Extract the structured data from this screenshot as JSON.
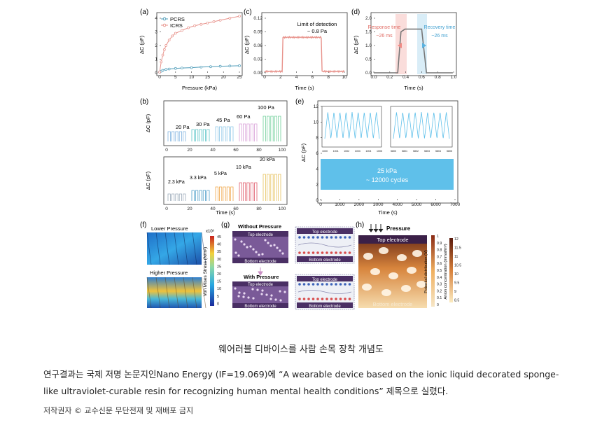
{
  "figure": {
    "panel_a": {
      "letter": "(a)",
      "xlabel": "Pressure (kPa)",
      "ylabel": "ΔC (pF)",
      "legend": [
        "PCRS",
        "ICRS"
      ],
      "xticks": [
        "0",
        "5",
        "10",
        "15",
        "20",
        "25"
      ],
      "yticks": [
        "0",
        "1",
        "2",
        "3",
        "4"
      ]
    },
    "panel_c": {
      "letter": "(c)",
      "xlabel": "Time (s)",
      "ylabel": "ΔC (pF)",
      "annotation_1": "Limit of detection",
      "annotation_2": "~ 0.8 Pa",
      "xticks": [
        "0",
        "2",
        "4",
        "6",
        "8",
        "10"
      ],
      "yticks": [
        "0.00",
        "0.03",
        "0.06",
        "0.09",
        "0.12"
      ]
    },
    "panel_d": {
      "letter": "(d)",
      "xlabel": "Time (s)",
      "ylabel": "ΔC (pF)",
      "response_label": "Response time",
      "response_value": "~26 ms",
      "recovery_label": "Recovery time",
      "recovery_value": "~26 ms",
      "xticks": [
        "0.0",
        "0.2",
        "0.4",
        "0.6",
        "0.8",
        "1.0"
      ],
      "yticks": [
        "0.0",
        "0.5",
        "1.0",
        "1.5",
        "2.0"
      ]
    },
    "panel_b": {
      "letter": "(b)",
      "xlabel": "Time (s)",
      "ylabel": "ΔC (pF)",
      "top_labels": [
        "20 Pa",
        "30 Pa",
        "45 Pa",
        "60 Pa",
        "100 Pa"
      ],
      "bottom_labels": [
        "2.3 kPa",
        "3.3 kPa",
        "5 kPa",
        "10 kPa",
        "20 kPa"
      ],
      "xticks": [
        "0",
        "20",
        "40",
        "60",
        "80",
        "100"
      ]
    },
    "panel_e": {
      "letter": "(e)",
      "xlabel": "Time (s)",
      "ylabel": "ΔC (pF)",
      "band_line_1": "25 kPa",
      "band_line_2": "~ 12000 cycles",
      "xticks": [
        "0",
        "1000",
        "2000",
        "3000",
        "4000",
        "5000",
        "6000",
        "7000"
      ],
      "yticks": [
        "0",
        "2",
        "4",
        "6",
        "8",
        "10",
        "12"
      ],
      "inset1_xticks": [
        "1000",
        "1001",
        "1002",
        "1003",
        "1004",
        "1005"
      ],
      "inset2_xticks": [
        "5800",
        "5801",
        "5802",
        "5803",
        "5804",
        "5805"
      ]
    },
    "panel_f": {
      "letter": "(f)",
      "lower": "Lower Pressure",
      "higher": "Higher Pressure",
      "colorbar_title": "Von Mises Stress (N/m²)",
      "colorbar_unit": "x10³",
      "colorbar_ticks": [
        "45",
        "40",
        "35",
        "30",
        "25",
        "20",
        "15",
        "10",
        "5",
        "0"
      ]
    },
    "panel_g": {
      "letter": "(g)",
      "without": "Without Pressure",
      "with": "With Pressure",
      "top_electrode": "Top electrode",
      "bottom_electrode": "Bottom electrode"
    },
    "panel_h": {
      "letter": "(h)",
      "pressure": "Pressure",
      "top_electrode": "Top electrode",
      "bottom_electrode": "Bottom electrode",
      "potential_label": "Potential distribution (V)",
      "anion_label": "Anion concentration (mmol/m³)",
      "potential_ticks": [
        "1",
        "0.9",
        "0.8",
        "0.7",
        "0.6",
        "0.5",
        "0.4",
        "0.3",
        "0.2",
        "0.1",
        "0"
      ],
      "anion_ticks": [
        "12",
        "11.5",
        "11",
        "10.5",
        "10",
        "9.5",
        "9",
        "8.5"
      ]
    },
    "colors": {
      "pcrs": "#4d9bb8",
      "icrs": "#e8938c",
      "cycle_band": "#5fc0ea",
      "purple": "#5b3e78",
      "response": "#f08a84",
      "recovery": "#5ab2e0"
    }
  },
  "caption": "웨어러블 디바이스를 사람 손목 장착 개념도",
  "body": "연구결과는 국제 저명 논문지인Nano Energy (IF=19.069)에 “A wearable device based on the ionic liquid decorated sponge-like ultraviolet-curable resin for recognizing human mental health conditions” 제목으로 실렸다.",
  "copyright": "저작권자 © 교수신문 무단전재 및 재배포 금지"
}
